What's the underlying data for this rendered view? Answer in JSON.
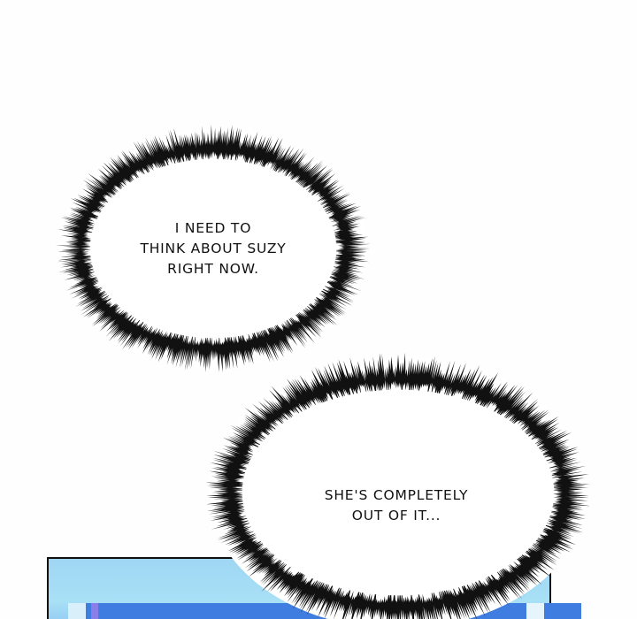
{
  "bubbles": [
    {
      "lines": [
        "I NEED TO",
        "THINK ABOUT SUZY",
        "RIGHT NOW."
      ]
    },
    {
      "lines": [
        "SHE'S COMPLETELY",
        "OUT OF IT..."
      ]
    }
  ],
  "colors": {
    "panel_sky": "#a8e0f6",
    "panel_blue": "#3f7ee0",
    "ink": "#111111"
  }
}
